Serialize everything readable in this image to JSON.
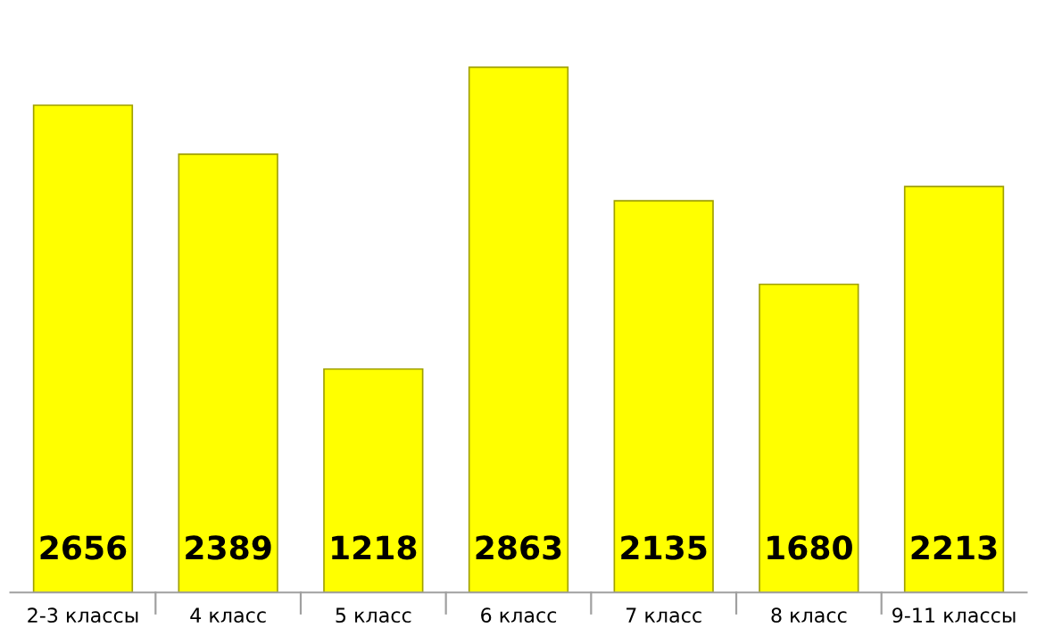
{
  "chart_data": {
    "type": "bar",
    "categories": [
      "2-3 классы",
      "4 класс",
      "5 класс",
      "6 класс",
      "7 класс",
      "8 класс",
      "9-11 классы"
    ],
    "values": [
      2656,
      2389,
      1218,
      2863,
      2135,
      1680,
      2213
    ],
    "color": "#ffff00",
    "data_labels": true,
    "grid": false,
    "legend": false
  }
}
